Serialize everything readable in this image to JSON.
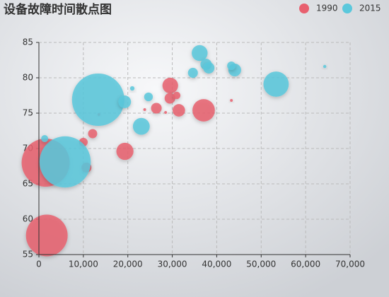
{
  "chart_data": {
    "type": "bubble",
    "title": "设备故障时间散点图",
    "xlim": [
      0,
      70000
    ],
    "xticks": [
      0,
      {
        "value": 10000,
        "label": "10,000"
      },
      {
        "value": 20000,
        "label": "20,000"
      },
      {
        "value": 30000,
        "label": "30,000"
      },
      {
        "value": 40000,
        "label": "40,000"
      },
      {
        "value": 50000,
        "label": "50,000"
      },
      {
        "value": 60000,
        "label": "60,000"
      },
      {
        "value": 70000,
        "label": "70,000"
      }
    ],
    "ylim": [
      55,
      85
    ],
    "yticks": [
      55,
      60,
      65,
      70,
      75,
      80,
      85
    ],
    "grid": true,
    "legend": "top-right",
    "series": [
      {
        "name": "1990",
        "color": "#e8606f",
        "x": [
          1516,
          1777,
          29550,
          37062,
          31476,
          29476,
          31000,
          26424,
          19349,
          12087,
          10000,
          10700,
          23800,
          28500,
          43300,
          13500
        ],
        "values": [
          68,
          57.7,
          78.9,
          75.4,
          75.4,
          77.1,
          77.5,
          75.7,
          69.6,
          72.1,
          70.9,
          67.3,
          75.5,
          75.1,
          76.8,
          74.8
        ],
        "sizes": [
          1154,
          870,
          123,
          252,
          78,
          57,
          28,
          57,
          147,
          42,
          38,
          50,
          4,
          4,
          4,
          4
        ]
      },
      {
        "name": "2015",
        "color": "#5bc8dc",
        "x": [
          13334,
          5903,
          53354,
          36162,
          44053,
          37599,
          38225,
          34644,
          43294,
          23038,
          19300,
          24650,
          21000,
          1300,
          64300
        ],
        "values": [
          76.9,
          68.1,
          79.1,
          83.5,
          81.1,
          81.9,
          81.4,
          80.7,
          81.7,
          73.13,
          76.6,
          77.3,
          78.5,
          71.4,
          81.6
        ],
        "sizes": [
          1371,
          1311,
          321,
          127,
          82,
          64,
          64,
          50,
          36,
          143,
          80,
          38,
          10,
          25,
          5
        ]
      }
    ]
  }
}
